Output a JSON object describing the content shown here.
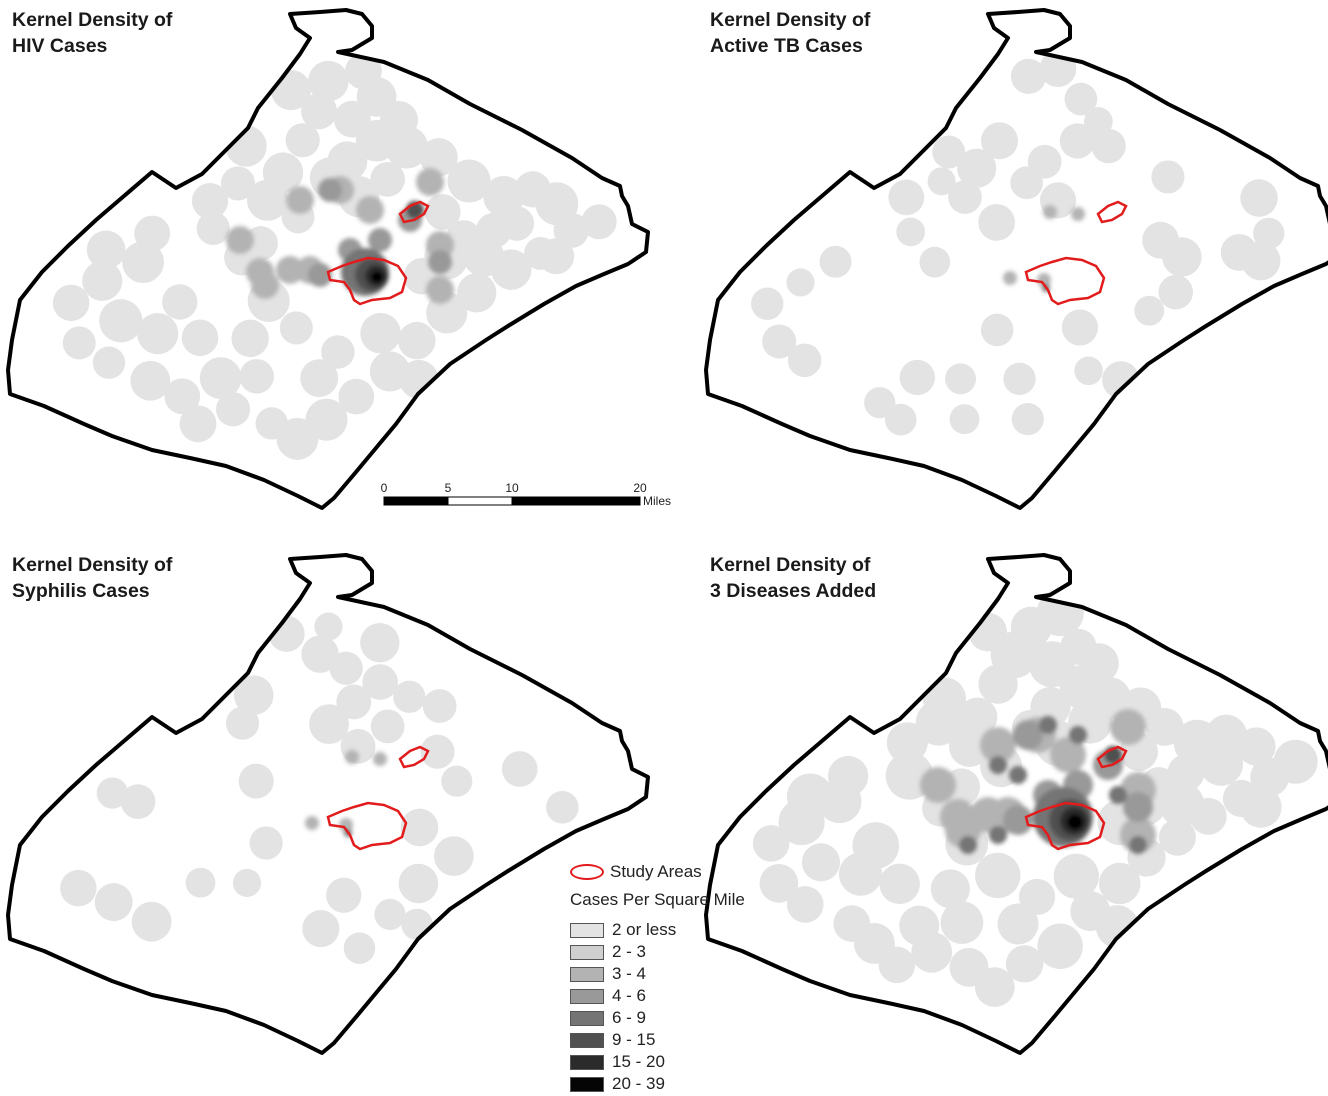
{
  "panels": [
    {
      "id": "hiv",
      "title_line1": "Kernel Density of",
      "title_line2": "HIV Cases",
      "intensity": "high"
    },
    {
      "id": "tb",
      "title_line1": "Kernel Density of",
      "title_line2": "Active TB Cases",
      "intensity": "low"
    },
    {
      "id": "syphilis",
      "title_line1": "Kernel Density of",
      "title_line2": "Syphilis Cases",
      "intensity": "low"
    },
    {
      "id": "combined",
      "title_line1": "Kernel Density of",
      "title_line2": "3 Diseases Added",
      "intensity": "highest"
    }
  ],
  "scalebar": {
    "ticks": [
      "0",
      "5",
      "10",
      "20"
    ],
    "unit": "Miles"
  },
  "legend": {
    "study_areas_label": "Study Areas",
    "heading": "Cases Per Square Mile",
    "classes": [
      {
        "label": "2 or less",
        "color": "#e3e3e3"
      },
      {
        "label": "2 - 3",
        "color": "#cfcfcf"
      },
      {
        "label": "3 - 4",
        "color": "#b3b3b3"
      },
      {
        "label": "4 - 6",
        "color": "#999999"
      },
      {
        "label": "6 - 9",
        "color": "#747474"
      },
      {
        "label": "9 - 15",
        "color": "#505050"
      },
      {
        "label": "15 - 20",
        "color": "#2b2b2b"
      },
      {
        "label": "20 - 39",
        "color": "#050505"
      }
    ],
    "study_area_color": "#e21c1c",
    "boundary_color": "#000000"
  }
}
